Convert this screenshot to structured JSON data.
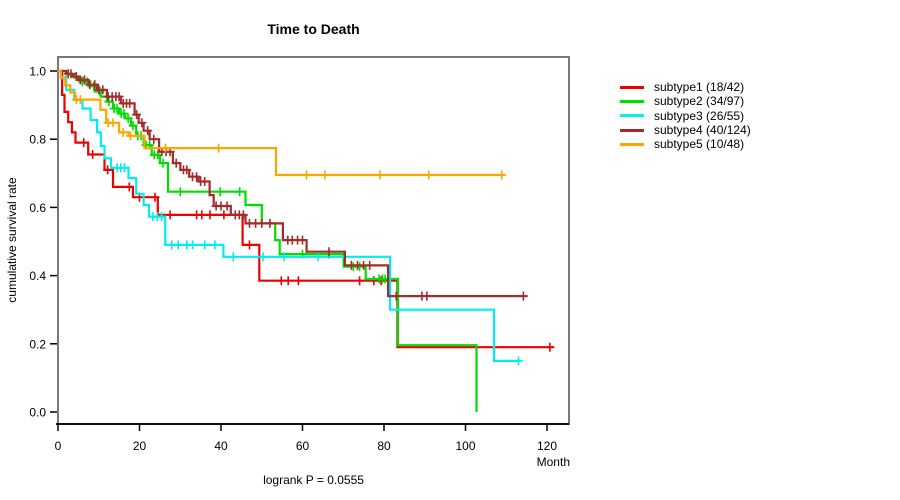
{
  "chart_data": {
    "type": "line",
    "chart_kind": "kaplan_meier_step_survival",
    "title": "Time to Death",
    "xlabel": "Month",
    "ylabel": "cumulative survival rate",
    "annotation": "logrank P = 0.0555",
    "xlim": [
      0,
      125
    ],
    "ylim": [
      0.0,
      1.0
    ],
    "x_ticks": [
      "0",
      "20",
      "40",
      "60",
      "80",
      "100",
      "120"
    ],
    "y_ticks": [
      "0.0",
      "0.2",
      "0.4",
      "0.6",
      "0.8",
      "1.0"
    ],
    "grid": false,
    "legend_position": "right-outside",
    "frame_color": "#787878",
    "axis_color": "#000000",
    "series": [
      {
        "id": "subtype1",
        "name": "subtype1 (18/42)",
        "events": 18,
        "n": 42,
        "color": "#ee0000",
        "steps": [
          [
            0,
            1.0
          ],
          [
            1,
            0.93
          ],
          [
            1.6,
            0.88
          ],
          [
            2.5,
            0.85
          ],
          [
            3.4,
            0.82
          ],
          [
            4.3,
            0.79
          ],
          [
            7.4,
            0.755
          ],
          [
            11.4,
            0.71
          ],
          [
            13.5,
            0.66
          ],
          [
            18.4,
            0.63
          ],
          [
            24.5,
            0.578
          ],
          [
            45.3,
            0.49
          ],
          [
            49.4,
            0.385
          ],
          [
            83.3,
            0.19
          ]
        ],
        "end": 121.6,
        "censor_marks": [
          6.3,
          8.5,
          12.2,
          17.5,
          20,
          23.8,
          27.5,
          34,
          35.3,
          37.3,
          40.7,
          47,
          54.8,
          56.5,
          59,
          74,
          77.5,
          79.3,
          120.7
        ]
      },
      {
        "id": "subtype2",
        "name": "subtype2 (34/97)",
        "events": 34,
        "n": 97,
        "color": "#00dd00",
        "steps": [
          [
            0,
            1.0
          ],
          [
            2,
            0.99
          ],
          [
            4,
            0.98
          ],
          [
            6,
            0.968
          ],
          [
            7.5,
            0.955
          ],
          [
            9,
            0.94
          ],
          [
            10.5,
            0.925
          ],
          [
            12,
            0.91
          ],
          [
            13.5,
            0.89
          ],
          [
            15,
            0.875
          ],
          [
            16.5,
            0.861
          ],
          [
            17.9,
            0.84
          ],
          [
            19.2,
            0.81
          ],
          [
            21,
            0.783
          ],
          [
            23,
            0.754
          ],
          [
            25,
            0.73
          ],
          [
            27,
            0.646
          ],
          [
            46,
            0.607
          ],
          [
            50,
            0.553
          ],
          [
            53.3,
            0.504
          ],
          [
            54.4,
            0.463
          ],
          [
            70.1,
            0.426
          ],
          [
            75.5,
            0.39
          ],
          [
            83.4,
            0.196
          ],
          [
            102.7,
            0.0
          ]
        ],
        "end": 102.7,
        "censor_marks": [
          6,
          7.2,
          8.8,
          10.3,
          12.5,
          13.8,
          14.5,
          15.5,
          16.2,
          17.2,
          18.4,
          19.6,
          20.4,
          21.6,
          22.5,
          23.6,
          24.5,
          25.8,
          30,
          39.8,
          44.6,
          60,
          66.5,
          72.5,
          74,
          78.8,
          79.6,
          80.3
        ]
      },
      {
        "id": "subtype3",
        "name": "subtype3 (26/55)",
        "events": 26,
        "n": 55,
        "color": "#00eeee",
        "steps": [
          [
            0,
            1.0
          ],
          [
            0.7,
            0.982
          ],
          [
            2,
            0.945
          ],
          [
            4,
            0.915
          ],
          [
            6,
            0.89
          ],
          [
            8,
            0.856
          ],
          [
            9.6,
            0.82
          ],
          [
            10.5,
            0.78
          ],
          [
            11.4,
            0.744
          ],
          [
            13,
            0.716
          ],
          [
            17.3,
            0.686
          ],
          [
            19.2,
            0.64
          ],
          [
            21,
            0.607
          ],
          [
            22.3,
            0.573
          ],
          [
            26.3,
            0.49
          ],
          [
            40.6,
            0.455
          ],
          [
            81.5,
            0.3
          ],
          [
            107,
            0.15
          ]
        ],
        "end": 113.5,
        "censor_marks": [
          14.5,
          15.4,
          16.3,
          23.3,
          24.4,
          25.4,
          27.9,
          29.5,
          31.6,
          33,
          36,
          38.5,
          43,
          50.3,
          55.5,
          63.8,
          113
        ]
      },
      {
        "id": "subtype4",
        "name": "subtype4 (40/124)",
        "events": 40,
        "n": 124,
        "color": "#a52a2a",
        "steps": [
          [
            0,
            1.0
          ],
          [
            2,
            0.992
          ],
          [
            3.5,
            0.984
          ],
          [
            5,
            0.974
          ],
          [
            7.5,
            0.96
          ],
          [
            9.6,
            0.945
          ],
          [
            12,
            0.925
          ],
          [
            15.4,
            0.905
          ],
          [
            18.8,
            0.872
          ],
          [
            19.8,
            0.848
          ],
          [
            21,
            0.825
          ],
          [
            22.5,
            0.8
          ],
          [
            24.8,
            0.763
          ],
          [
            28.2,
            0.73
          ],
          [
            30,
            0.71
          ],
          [
            32.2,
            0.69
          ],
          [
            34.5,
            0.676
          ],
          [
            37.2,
            0.636
          ],
          [
            38.2,
            0.604
          ],
          [
            42.4,
            0.578
          ],
          [
            46,
            0.553
          ],
          [
            55.2,
            0.504
          ],
          [
            61,
            0.47
          ],
          [
            70.4,
            0.43
          ],
          [
            81,
            0.34
          ]
        ],
        "end": 115,
        "censor_marks": [
          2.5,
          3.2,
          4.5,
          5.5,
          6.5,
          7.8,
          9,
          10,
          11,
          12.3,
          13.3,
          14.2,
          15,
          16,
          16.8,
          17.6,
          19.3,
          20.6,
          22,
          23.5,
          25.5,
          26.5,
          27.5,
          29,
          30.8,
          31.6,
          33,
          34,
          35,
          36,
          38.8,
          40,
          41.5,
          43.5,
          44.5,
          45.5,
          47,
          48.5,
          50,
          52,
          56.4,
          57.5,
          58.8,
          60,
          66.5,
          72,
          73.5,
          75,
          76.5,
          83,
          89.3,
          90.5,
          114.2
        ]
      },
      {
        "id": "subtype5",
        "name": "subtype5 (10/48)",
        "events": 10,
        "n": 48,
        "color": "#ffa500",
        "steps": [
          [
            0,
            1.0
          ],
          [
            0.7,
            0.979
          ],
          [
            1.8,
            0.958
          ],
          [
            3,
            0.937
          ],
          [
            4.2,
            0.916
          ],
          [
            10.4,
            0.886
          ],
          [
            11.8,
            0.848
          ],
          [
            15,
            0.82
          ],
          [
            17.3,
            0.81
          ],
          [
            21.2,
            0.774
          ],
          [
            53.5,
            0.695
          ]
        ],
        "end": 109.7,
        "censor_marks": [
          4.5,
          5.5,
          12.3,
          13.5,
          16,
          17.8,
          26.4,
          39.4,
          61,
          65.5,
          79,
          91,
          108.9
        ]
      }
    ]
  }
}
